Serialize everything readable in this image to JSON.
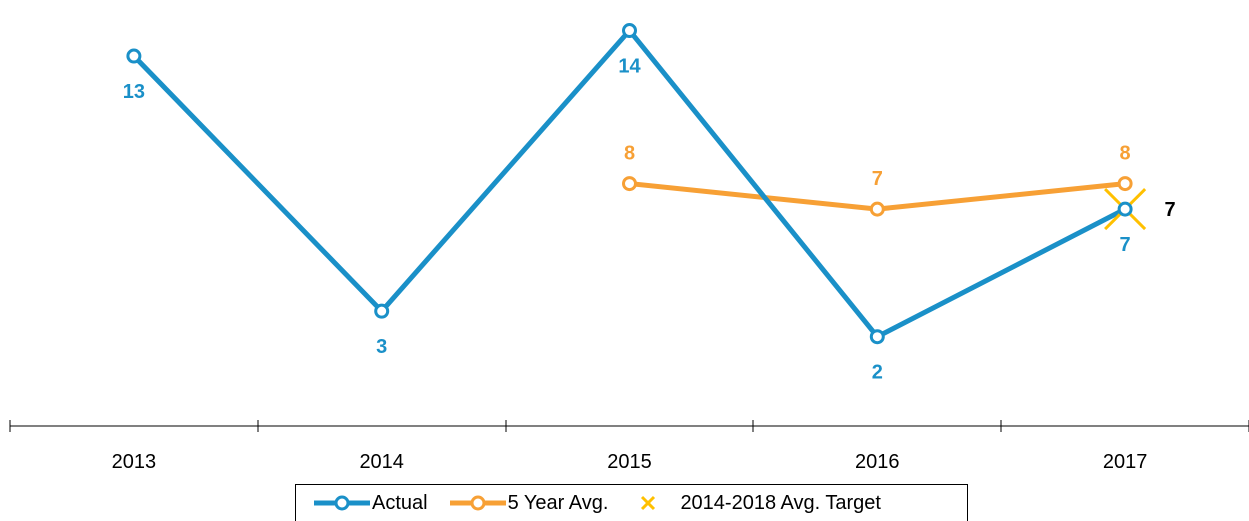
{
  "chart_data": {
    "type": "line",
    "categories": [
      "2013",
      "2014",
      "2015",
      "2016",
      "2017"
    ],
    "series": [
      {
        "name": "Actual",
        "values": [
          13,
          3,
          14,
          2,
          7
        ],
        "color": "#1a90c8",
        "labels": [
          "13",
          "3",
          "14",
          "2",
          "7"
        ]
      },
      {
        "name": "5 Year Avg.",
        "values": [
          null,
          null,
          8,
          7,
          8
        ],
        "color": "#f7a035",
        "labels": [
          "",
          "",
          "8",
          "7",
          "8"
        ]
      },
      {
        "name": "2014-2018 Avg. Target",
        "values": [
          null,
          null,
          null,
          null,
          7
        ],
        "color": "#ffc000",
        "labels": [
          "",
          "",
          "",
          "",
          "7"
        ],
        "marker": "x"
      }
    ],
    "ylim": [
      -1.5,
      15
    ],
    "legend_position": "bottom"
  }
}
